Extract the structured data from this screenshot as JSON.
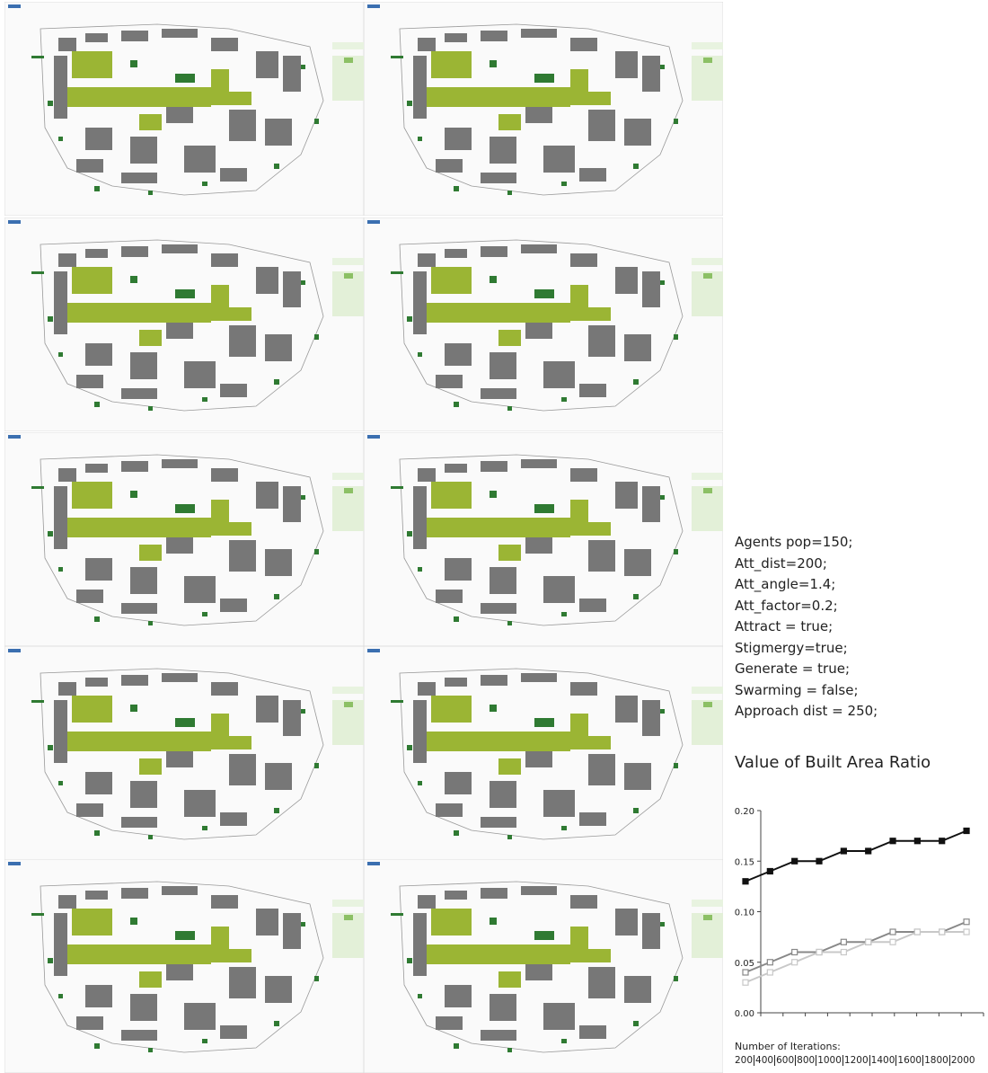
{
  "parameters": [
    "Agents  pop=150;",
    "Att_dist=200;",
    "Att_angle=1.4;",
    "Att_factor=0.2;",
    "Attract = true;",
    "Stigmergy=true;",
    "Generate = true;",
    "Swarming = false;",
    "Approach dist = 250;"
  ],
  "chart_data": {
    "type": "line",
    "title": "Value of Built Area Ratio",
    "x_label": "Number of Iterations:",
    "categories": [
      "200",
      "400",
      "600",
      "800",
      "1000",
      "1200",
      "1400",
      "1600",
      "1800",
      "2000"
    ],
    "series": [
      {
        "color": "#111111",
        "values": [
          0.13,
          0.14,
          0.15,
          0.15,
          0.16,
          0.16,
          0.17,
          0.17,
          0.17,
          0.18
        ]
      },
      {
        "color": "#888888",
        "values": [
          0.04,
          0.05,
          0.06,
          0.06,
          0.07,
          0.07,
          0.08,
          0.08,
          0.08,
          0.09
        ]
      },
      {
        "color": "#c8c8c8",
        "values": [
          0.03,
          0.04,
          0.05,
          0.06,
          0.06,
          0.07,
          0.07,
          0.08,
          0.08,
          0.08
        ]
      }
    ],
    "ylim": [
      0,
      0.2
    ],
    "yticks": [
      {
        "value": 0,
        "label": "0.00"
      },
      0.05,
      {
        "value": 0.1,
        "label": "0.10"
      },
      0.15,
      {
        "value": 0.2,
        "label": "0.20"
      }
    ]
  }
}
